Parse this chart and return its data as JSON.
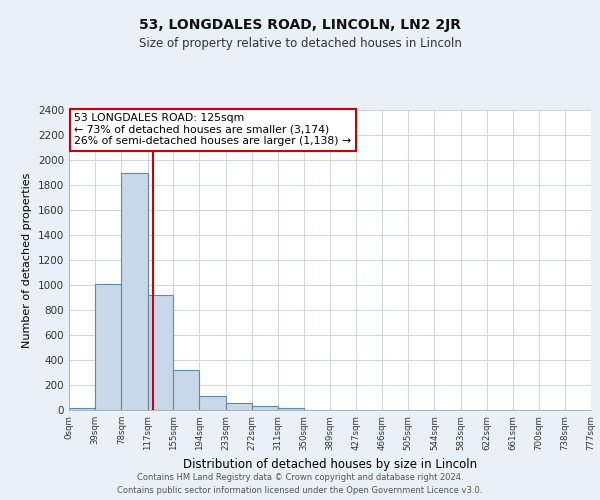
{
  "title": "53, LONGDALES ROAD, LINCOLN, LN2 2JR",
  "subtitle": "Size of property relative to detached houses in Lincoln",
  "xlabel": "Distribution of detached houses by size in Lincoln",
  "ylabel": "Number of detached properties",
  "footer_lines": [
    "Contains HM Land Registry data © Crown copyright and database right 2024.",
    "Contains public sector information licensed under the Open Government Licence v3.0."
  ],
  "bin_edges": [
    0,
    39,
    78,
    117,
    155,
    194,
    233,
    272,
    311,
    350,
    389,
    427,
    466,
    505,
    544,
    583,
    622,
    661,
    700,
    738,
    777
  ],
  "bin_labels": [
    "0sqm",
    "39sqm",
    "78sqm",
    "117sqm",
    "155sqm",
    "194sqm",
    "233sqm",
    "272sqm",
    "311sqm",
    "350sqm",
    "389sqm",
    "427sqm",
    "466sqm",
    "505sqm",
    "544sqm",
    "583sqm",
    "622sqm",
    "661sqm",
    "700sqm",
    "738sqm",
    "777sqm"
  ],
  "bar_heights": [
    20,
    1010,
    1900,
    920,
    320,
    110,
    55,
    30,
    20,
    0,
    0,
    0,
    0,
    0,
    0,
    0,
    0,
    0,
    0,
    0
  ],
  "bar_color": "#c8d8e8",
  "bar_edge_color": "#5b8ab5",
  "vline_x": 125,
  "vline_color": "#cc0000",
  "annotation_line1": "53 LONGDALES ROAD: 125sqm",
  "annotation_line2": "← 73% of detached houses are smaller (3,174)",
  "annotation_line3": "26% of semi-detached houses are larger (1,138) →",
  "annotation_box_color": "#cc0000",
  "annotation_box_fill": "#ffffff",
  "ylim": [
    0,
    2400
  ],
  "yticks": [
    0,
    200,
    400,
    600,
    800,
    1000,
    1200,
    1400,
    1600,
    1800,
    2000,
    2200,
    2400
  ],
  "bg_color": "#eaf0f7",
  "plot_bg_color": "#ffffff",
  "grid_color": "#c8d0da"
}
